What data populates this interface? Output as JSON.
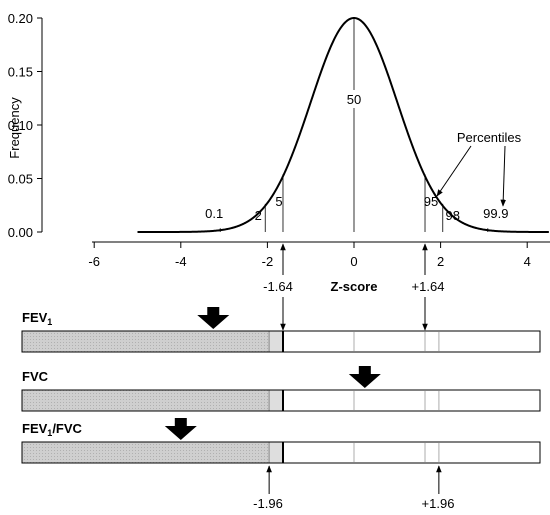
{
  "chart_data": {
    "type": "line",
    "ylabel": "Frequency",
    "xlabel": "Z-score",
    "xlim": [
      -6,
      4.5
    ],
    "ylim": [
      0,
      0.2
    ],
    "x_ticks": [
      "-6",
      "-4",
      "-2",
      "0",
      "2",
      "4"
    ],
    "y_ticks": [
      "0.00",
      "0.05",
      "0.10",
      "0.15",
      "0.20"
    ],
    "curve": {
      "distribution": "standard normal",
      "x_range": [
        -5,
        4.5
      ],
      "peak": 0.2
    },
    "percentiles_title": "Percentiles",
    "percentile_marks": [
      {
        "label": "0.1",
        "z": -3.09
      },
      {
        "label": "2",
        "z": -2.05
      },
      {
        "label": "5",
        "z": -1.64
      },
      {
        "label": "50",
        "z": 0
      },
      {
        "label": "95",
        "z": 1.64
      },
      {
        "label": "98",
        "z": 2.05
      },
      {
        "label": "99.9",
        "z": 3.09
      }
    ],
    "cutoff_top_left": "-1.64",
    "cutoff_top_right": "+1.64",
    "cutoff_bottom_left": "-1.96",
    "cutoff_bottom_right": "+1.96",
    "bars": [
      {
        "label": "FEV",
        "sub": "1",
        "arrow_z": -3.25
      },
      {
        "label": "FVC",
        "sub": "",
        "arrow_z": 0.25
      },
      {
        "label": "FEV",
        "sub": "1",
        "suffix": "/FVC",
        "arrow_z": -4.0
      }
    ],
    "bar_cut_z": [
      -1.96,
      -1.64,
      0,
      1.64,
      1.96
    ],
    "colors": {
      "below_lln": "#cccccc",
      "lln_zone": "#dedede",
      "normal": "#ffffff",
      "line": "#000000"
    }
  }
}
